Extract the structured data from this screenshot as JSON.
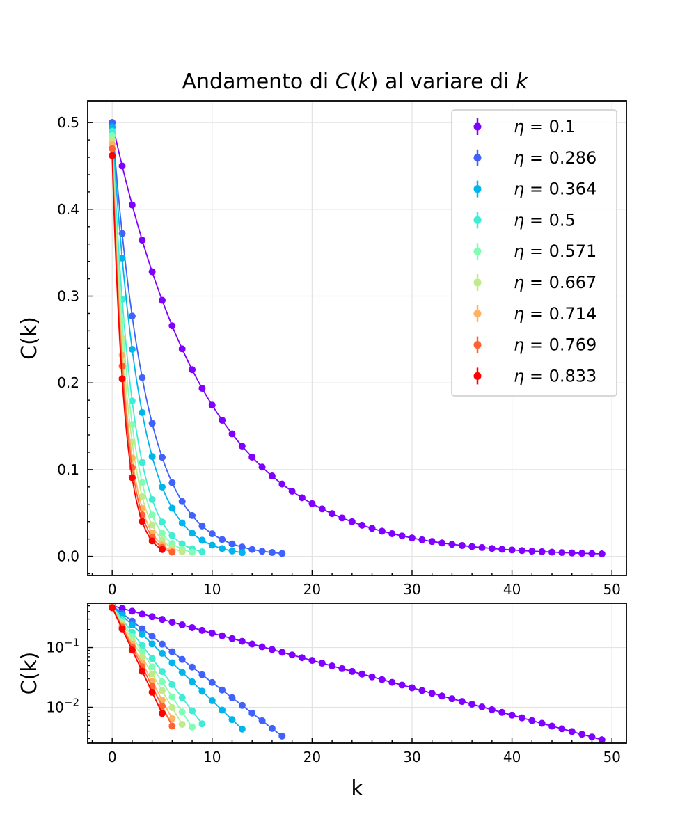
{
  "chart_data": {
    "title": {
      "prefix": "Andamento di ",
      "fn": "C",
      "open": "(",
      "var": "k",
      "close": ")",
      "middle": " al variare di ",
      "var2": "k"
    },
    "series": [
      {
        "name": "η = 0.1",
        "eta": "0.1",
        "color": "#8000ff",
        "c0": 0.5,
        "r": 0.9,
        "n": 50
      },
      {
        "name": "η = 0.286",
        "eta": "0.286",
        "color": "#4062fa",
        "c0": 0.5,
        "r": 0.7442,
        "n": 18
      },
      {
        "name": "η = 0.364",
        "eta": "0.364",
        "color": "#00b5eb",
        "c0": 0.495,
        "r": 0.6944,
        "n": 14
      },
      {
        "name": "η = 0.5",
        "eta": "0.5",
        "color": "#40ecd4",
        "c0": 0.49,
        "r": 0.6046,
        "n": 10
      },
      {
        "name": "η = 0.571",
        "eta": "0.571",
        "color": "#80ffb4",
        "c0": 0.485,
        "r": 0.5598,
        "n": 9
      },
      {
        "name": "η = 0.667",
        "eta": "0.667",
        "color": "#c0eb8d",
        "c0": 0.48,
        "r": 0.5237,
        "n": 8
      },
      {
        "name": "η = 0.714",
        "eta": "0.714",
        "color": "#ffb360",
        "c0": 0.475,
        "r": 0.4883,
        "n": 7
      },
      {
        "name": "η = 0.769",
        "eta": "0.769",
        "color": "#ff6130",
        "c0": 0.47,
        "r": 0.4667,
        "n": 7
      },
      {
        "name": "η = 0.833",
        "eta": "0.833",
        "color": "#ff0000",
        "c0": 0.462,
        "r": 0.4431,
        "n": 6
      }
    ],
    "top": {
      "type": "line",
      "ylabel": "C(k)",
      "xlim": [
        -2.45,
        51.45
      ],
      "ylim": [
        -0.022,
        0.525
      ],
      "xticks": [
        0,
        10,
        20,
        30,
        40,
        50
      ],
      "yticks": [
        0.0,
        0.1,
        0.2,
        0.3,
        0.4,
        0.5
      ],
      "ytick_labels": [
        "0.0",
        "0.1",
        "0.2",
        "0.3",
        "0.4",
        "0.5"
      ],
      "grid": true,
      "legend": "top-right"
    },
    "bottom": {
      "type": "line",
      "yscale": "log",
      "xlabel": "k",
      "ylabel": "C(k)",
      "xlim": [
        -2.45,
        51.45
      ],
      "ylim_log10": [
        -2.6,
        -0.26
      ],
      "xticks": [
        0,
        10,
        20,
        30,
        40,
        50
      ],
      "yticks_log10": [
        -1,
        -2
      ],
      "ytick_labels": [
        {
          "base": "10",
          "exp": "−1"
        },
        {
          "base": "10",
          "exp": "−2"
        }
      ],
      "grid": true
    }
  }
}
